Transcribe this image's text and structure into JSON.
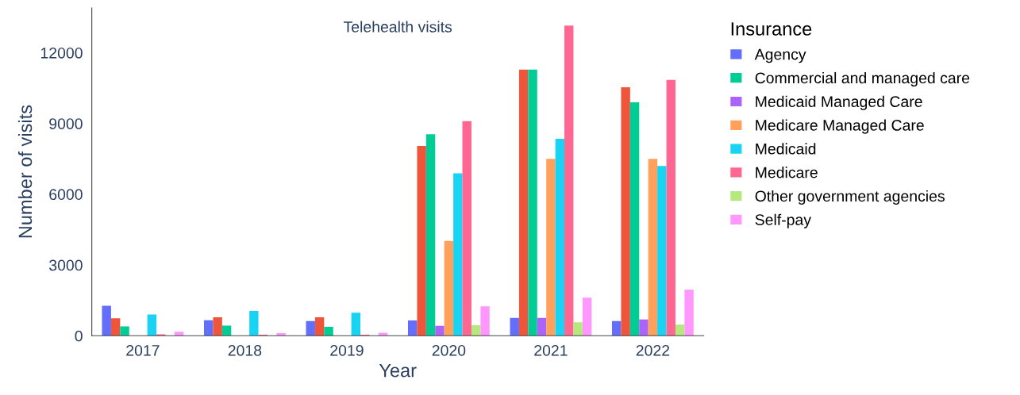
{
  "chart_data": {
    "type": "bar",
    "title": "Telehealth visits",
    "xlabel": "Year",
    "ylabel": "Number of visits",
    "legend_title": "Insurance",
    "categories": [
      "2017",
      "2018",
      "2019",
      "2020",
      "2021",
      "2022"
    ],
    "series": [
      {
        "name": "Agency",
        "color": "#636efa",
        "values": [
          1270,
          660,
          620,
          650,
          760,
          620
        ]
      },
      {
        "color": "#ef553b",
        "values": [
          740,
          780,
          780,
          8050,
          11280,
          10540
        ]
      },
      {
        "name": "Commercial and managed care",
        "color": "#00cc96",
        "values": [
          400,
          430,
          380,
          8540,
          11280,
          9900
        ]
      },
      {
        "name": "Medicaid Managed Care",
        "color": "#ab63fa",
        "values": [
          0,
          0,
          0,
          420,
          760,
          690
        ]
      },
      {
        "name": "Medicare Managed Care",
        "color": "#ffa15a",
        "values": [
          0,
          0,
          0,
          4020,
          7500,
          7500
        ]
      },
      {
        "name": "Medicaid",
        "color": "#19d3f3",
        "values": [
          900,
          1050,
          980,
          6890,
          8350,
          7200
        ]
      },
      {
        "name": "Medicare",
        "color": "#ff6692",
        "values": [
          60,
          40,
          40,
          9100,
          13150,
          10850
        ]
      },
      {
        "name": "Other government agencies",
        "color": "#b6e880",
        "values": [
          0,
          0,
          0,
          450,
          570,
          470
        ]
      },
      {
        "name": "Self-pay",
        "color": "#ff97ff",
        "values": [
          170,
          110,
          130,
          1250,
          1620,
          1950
        ]
      }
    ],
    "ylim": [
      0,
      13900
    ],
    "yticks": [
      0,
      3000,
      6000,
      9000,
      12000
    ],
    "grid": false,
    "legend": "right"
  }
}
